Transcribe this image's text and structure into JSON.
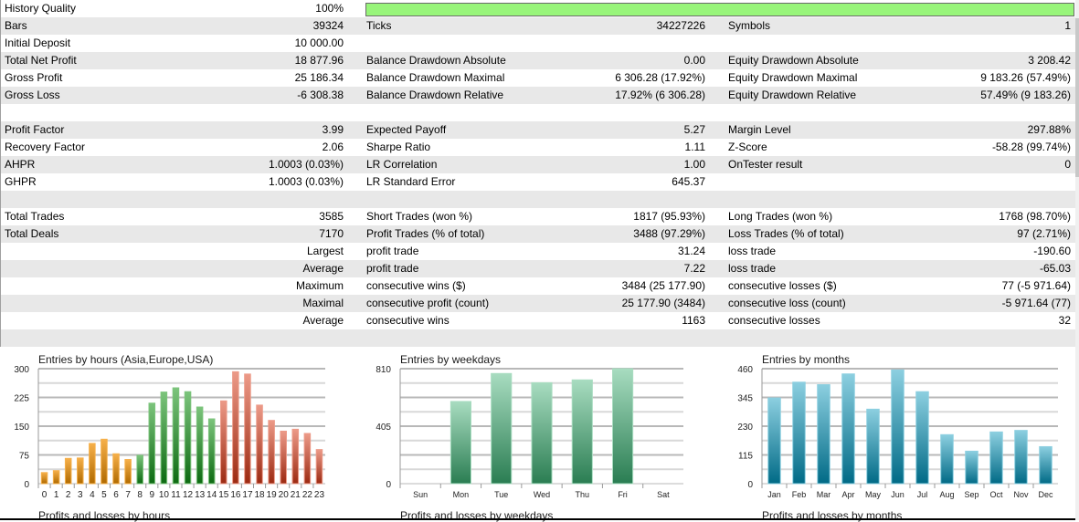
{
  "history_quality": {
    "label": "History Quality",
    "value": "100%",
    "fill_percent": 100,
    "bar_color": "#98f57a"
  },
  "rows": [
    {
      "l1": "Bars",
      "v1": "39324",
      "l2": "Ticks",
      "v2": "34227226",
      "l3": "Symbols",
      "v3": "1"
    },
    {
      "l1": "Initial Deposit",
      "v1": "10 000.00",
      "l2": "",
      "v2": "",
      "l3": "",
      "v3": ""
    },
    {
      "l1": "Total Net Profit",
      "v1": "18 877.96",
      "l2": "Balance Drawdown Absolute",
      "v2": "0.00",
      "l3": "Equity Drawdown Absolute",
      "v3": "3 208.42"
    },
    {
      "l1": "Gross Profit",
      "v1": "25 186.34",
      "l2": "Balance Drawdown Maximal",
      "v2": "6 306.28 (17.92%)",
      "l3": "Equity Drawdown Maximal",
      "v3": "9 183.26 (57.49%)"
    },
    {
      "l1": "Gross Loss",
      "v1": "-6 308.38",
      "l2": "Balance Drawdown Relative",
      "v2": "17.92% (6 306.28)",
      "l3": "Equity Drawdown Relative",
      "v3": "57.49% (9 183.26)"
    },
    {
      "l1": "",
      "v1": "",
      "l2": "",
      "v2": "",
      "l3": "",
      "v3": ""
    },
    {
      "l1": "Profit Factor",
      "v1": "3.99",
      "l2": "Expected Payoff",
      "v2": "5.27",
      "l3": "Margin Level",
      "v3": "297.88%"
    },
    {
      "l1": "Recovery Factor",
      "v1": "2.06",
      "l2": "Sharpe Ratio",
      "v2": "1.11",
      "l3": "Z-Score",
      "v3": "-58.28 (99.74%)"
    },
    {
      "l1": "AHPR",
      "v1": "1.0003 (0.03%)",
      "l2": "LR Correlation",
      "v2": "1.00",
      "l3": "OnTester result",
      "v3": "0"
    },
    {
      "l1": "GHPR",
      "v1": "1.0003 (0.03%)",
      "l2": "LR Standard Error",
      "v2": "645.37",
      "l3": "",
      "v3": ""
    },
    {
      "l1": "",
      "v1": "",
      "l2": "",
      "v2": "",
      "l3": "",
      "v3": ""
    },
    {
      "l1": "Total Trades",
      "v1": "3585",
      "l2": "Short Trades (won %)",
      "v2": "1817 (95.93%)",
      "l3": "Long Trades (won %)",
      "v3": "1768 (98.70%)"
    },
    {
      "l1": "Total Deals",
      "v1": "7170",
      "l2": "Profit Trades (% of total)",
      "v2": "3488 (97.29%)",
      "l3": "Loss Trades (% of total)",
      "v3": "97 (2.71%)"
    },
    {
      "l1": "",
      "v1": "Largest",
      "l2": "profit trade",
      "v2": "31.24",
      "l3": "loss trade",
      "v3": "-190.60"
    },
    {
      "l1": "",
      "v1": "Average",
      "l2": "profit trade",
      "v2": "7.22",
      "l3": "loss trade",
      "v3": "-65.03"
    },
    {
      "l1": "",
      "v1": "Maximum",
      "l2": "consecutive wins ($)",
      "v2": "3484 (25 177.90)",
      "l3": "consecutive losses ($)",
      "v3": "77 (-5 971.64)"
    },
    {
      "l1": "",
      "v1": "Maximal",
      "l2": "consecutive profit (count)",
      "v2": "25 177.90 (3484)",
      "l3": "consecutive loss (count)",
      "v3": "-5 971.64 (77)"
    },
    {
      "l1": "",
      "v1": "Average",
      "l2": "consecutive wins",
      "v2": "1163",
      "l3": "consecutive losses",
      "v3": "32"
    },
    {
      "l1": "",
      "v1": "",
      "l2": "",
      "v2": "",
      "l3": "",
      "v3": ""
    }
  ],
  "chart_data": [
    {
      "type": "bar",
      "title": "Entries by hours (Asia,Europe,USA)",
      "subtitle": "Profits and losses by hours",
      "ylim": [
        0,
        300
      ],
      "yticks": [
        "0",
        "75",
        "150",
        "225",
        "300"
      ],
      "grid": true,
      "categories": [
        "0",
        "1",
        "2",
        "3",
        "4",
        "5",
        "6",
        "7",
        "8",
        "9",
        "10",
        "11",
        "12",
        "13",
        "14",
        "15",
        "16",
        "17",
        "18",
        "19",
        "20",
        "21",
        "22",
        "23"
      ],
      "values": [
        29,
        34,
        66,
        67,
        105,
        116,
        78,
        63,
        74,
        210,
        239,
        250,
        240,
        200,
        169,
        216,
        292,
        286,
        205,
        165,
        137,
        142,
        131,
        89
      ],
      "groups": [
        {
          "name": "Asia",
          "from": 0,
          "to": 7,
          "color_top": "#f6b04a",
          "color_bottom": "#b06a00"
        },
        {
          "name": "Europe",
          "from": 8,
          "to": 14,
          "color_top": "#7cc47c",
          "color_bottom": "#0d6a12"
        },
        {
          "name": "USA",
          "from": 15,
          "to": 23,
          "color_top": "#ec9a88",
          "color_bottom": "#9c2a12"
        }
      ]
    },
    {
      "type": "bar",
      "title": "Entries by weekdays",
      "subtitle": "Profits and losses by weekdays",
      "ylim": [
        0,
        810
      ],
      "yticks": [
        "0",
        "405",
        "810"
      ],
      "grid": true,
      "categories": [
        "Sun",
        "Mon",
        "Tue",
        "Wed",
        "Thu",
        "Fri",
        "Sat"
      ],
      "values": [
        0,
        579,
        776,
        711,
        731,
        810,
        0
      ],
      "color_top": "#a8dcc0",
      "color_bottom": "#2a7d52"
    },
    {
      "type": "bar",
      "title": "Entries by months",
      "subtitle": "Profits and losses by months",
      "ylim": [
        0,
        460
      ],
      "yticks": [
        "0",
        "115",
        "230",
        "345",
        "460"
      ],
      "grid": true,
      "categories": [
        "Jan",
        "Feb",
        "Mar",
        "Apr",
        "May",
        "Jun",
        "Jul",
        "Aug",
        "Sep",
        "Oct",
        "Nov",
        "Dec"
      ],
      "values": [
        343,
        406,
        396,
        439,
        298,
        455,
        368,
        196,
        130,
        207,
        213,
        148
      ],
      "color_top": "#8ccfe0",
      "color_bottom": "#006a86"
    }
  ]
}
